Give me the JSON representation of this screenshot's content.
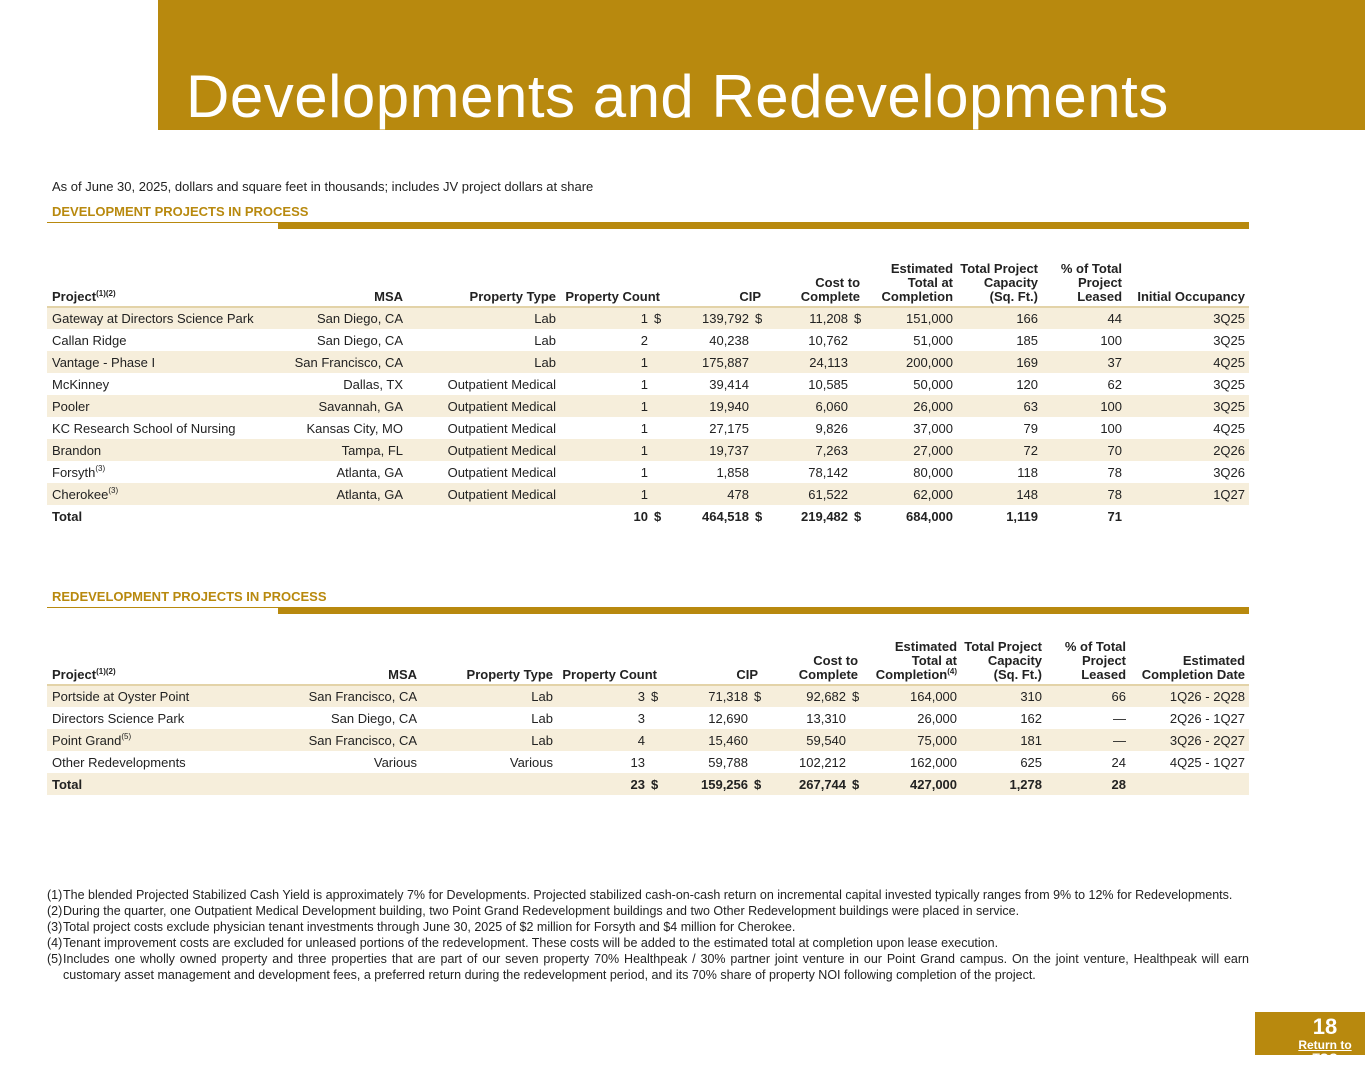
{
  "title": "Developments and Redevelopments",
  "subtitle": "As of June 30, 2025, dollars and square feet in thousands; includes JV project dollars at share",
  "colors": {
    "accent": "#B8890E",
    "stripe": "#F6EEDB"
  },
  "development": {
    "heading": "DEVELOPMENT PROJECTS IN PROCESS",
    "headers": [
      "Project",
      "(1)(2)",
      "MSA",
      "Property Type",
      "Property Count",
      "CIP",
      "Cost to Complete",
      "Estimated Total at Completion",
      "Total Project Capacity (Sq. Ft.)",
      "% of Total Project Leased",
      "Initial Occupancy"
    ],
    "rows": [
      {
        "project": "Gateway at Directors Science Park",
        "note": "",
        "msa": "San Diego, CA",
        "type": "Lab",
        "count": "1",
        "cip": "139,792",
        "cost": "11,208",
        "est": "151,000",
        "cap": "166",
        "leased": "44",
        "last": "3Q25",
        "dollar": true
      },
      {
        "project": "Callan Ridge",
        "note": "",
        "msa": "San Diego, CA",
        "type": "Lab",
        "count": "2",
        "cip": "40,238",
        "cost": "10,762",
        "est": "51,000",
        "cap": "185",
        "leased": "100",
        "last": "3Q25"
      },
      {
        "project": "Vantage - Phase I",
        "note": "",
        "msa": "San Francisco, CA",
        "type": "Lab",
        "count": "1",
        "cip": "175,887",
        "cost": "24,113",
        "est": "200,000",
        "cap": "169",
        "leased": "37",
        "last": "4Q25"
      },
      {
        "project": "McKinney",
        "note": "",
        "msa": "Dallas, TX",
        "type": "Outpatient Medical",
        "count": "1",
        "cip": "39,414",
        "cost": "10,585",
        "est": "50,000",
        "cap": "120",
        "leased": "62",
        "last": "3Q25"
      },
      {
        "project": "Pooler",
        "note": "",
        "msa": "Savannah, GA",
        "type": "Outpatient Medical",
        "count": "1",
        "cip": "19,940",
        "cost": "6,060",
        "est": "26,000",
        "cap": "63",
        "leased": "100",
        "last": "3Q25"
      },
      {
        "project": "KC Research School of Nursing",
        "note": "",
        "msa": "Kansas City, MO",
        "type": "Outpatient Medical",
        "count": "1",
        "cip": "27,175",
        "cost": "9,826",
        "est": "37,000",
        "cap": "79",
        "leased": "100",
        "last": "4Q25"
      },
      {
        "project": "Brandon",
        "note": "",
        "msa": "Tampa, FL",
        "type": "Outpatient Medical",
        "count": "1",
        "cip": "19,737",
        "cost": "7,263",
        "est": "27,000",
        "cap": "72",
        "leased": "70",
        "last": "2Q26"
      },
      {
        "project": "Forsyth",
        "note": "(3)",
        "msa": "Atlanta, GA",
        "type": "Outpatient Medical",
        "count": "1",
        "cip": "1,858",
        "cost": "78,142",
        "est": "80,000",
        "cap": "118",
        "leased": "78",
        "last": "3Q26"
      },
      {
        "project": "Cherokee",
        "note": "(3)",
        "msa": "Atlanta, GA",
        "type": "Outpatient Medical",
        "count": "1",
        "cip": "478",
        "cost": "61,522",
        "est": "62,000",
        "cap": "148",
        "leased": "78",
        "last": "1Q27"
      }
    ],
    "total": {
      "project": "Total",
      "note": "",
      "msa": "",
      "type": "",
      "count": "10",
      "cip": "464,518",
      "cost": "219,482",
      "est": "684,000",
      "cap": "1,119",
      "leased": "71",
      "last": "",
      "dollar": true
    }
  },
  "redevelopment": {
    "heading": "REDEVELOPMENT PROJECTS IN PROCESS",
    "headers": [
      "Project",
      "(1)(2)",
      "MSA",
      "Property Type",
      "Property Count",
      "CIP",
      "Cost to Complete",
      "Estimated Total at Completion",
      "Total Project Capacity (Sq. Ft.)",
      "% of Total Project Leased",
      "Estimated Completion Date"
    ],
    "est_note": "(4)",
    "rows": [
      {
        "project": "Portside at Oyster Point",
        "note": "",
        "msa": "San Francisco, CA",
        "type": "Lab",
        "count": "3",
        "cip": "71,318",
        "cost": "92,682",
        "est": "164,000",
        "cap": "310",
        "leased": "66",
        "last": "1Q26 - 2Q28",
        "dollar": true
      },
      {
        "project": "Directors Science Park",
        "note": "",
        "msa": "San Diego, CA",
        "type": "Lab",
        "count": "3",
        "cip": "12,690",
        "cost": "13,310",
        "est": "26,000",
        "cap": "162",
        "leased": "—",
        "last": "2Q26 - 1Q27"
      },
      {
        "project": "Point Grand",
        "note": "(5)",
        "msa": "San Francisco, CA",
        "type": "Lab",
        "count": "4",
        "cip": "15,460",
        "cost": "59,540",
        "est": "75,000",
        "cap": "181",
        "leased": "—",
        "last": "3Q26 - 2Q27"
      },
      {
        "project": "Other Redevelopments",
        "note": "",
        "msa": "Various",
        "type": "Various",
        "count": "13",
        "cip": "59,788",
        "cost": "102,212",
        "est": "162,000",
        "cap": "625",
        "leased": "24",
        "last": "4Q25 - 1Q27"
      }
    ],
    "total": {
      "project": "Total",
      "note": "",
      "msa": "",
      "type": "",
      "count": "23",
      "cip": "159,256",
      "cost": "267,744",
      "est": "427,000",
      "cap": "1,278",
      "leased": "28",
      "last": "",
      "dollar": true
    }
  },
  "footnotes": [
    {
      "n": "(1)",
      "text": "The blended Projected Stabilized Cash Yield is approximately 7% for Developments. Projected stabilized cash-on-cash return on incremental capital invested typically ranges from 9% to 12% for Redevelopments."
    },
    {
      "n": "(2)",
      "text": "During the quarter, one Outpatient Medical Development building, two Point Grand Redevelopment buildings and two Other Redevelopment buildings were placed in service."
    },
    {
      "n": "(3)",
      "text": "Total project costs exclude physician tenant investments through June 30, 2025 of $2 million for Forsyth and $4 million for Cherokee."
    },
    {
      "n": "(4)",
      "text": "Tenant improvement costs are excluded for unleased portions of the redevelopment. These costs will be added to the estimated total at completion upon lease execution."
    },
    {
      "n": "(5)",
      "text": "Includes one wholly owned property and three properties that are part of our seven property 70% Healthpeak / 30% partner joint venture in our Point Grand campus. On the joint venture, Healthpeak will earn customary asset management and development fees, a preferred return during the redevelopment period, and its 70% share of property NOI following completion of the project."
    }
  ],
  "page": {
    "number": "18",
    "toc_link": "Return to TOC",
    "dollar_sign": "$"
  }
}
